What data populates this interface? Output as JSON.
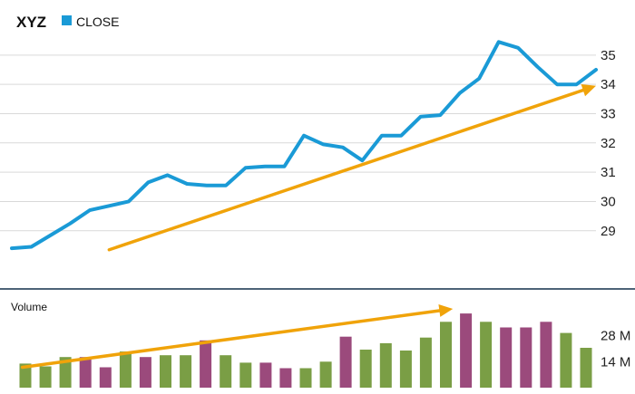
{
  "header": {
    "ticker": "XYZ",
    "legend_label": "CLOSE"
  },
  "colors": {
    "close_line": "#1a9ad6",
    "trend_arrow": "#f0a30a",
    "volume_up": "#7a9e45",
    "volume_down": "#9b4a7c",
    "grid": "#d9d9d9",
    "divider": "#4d6378"
  },
  "chart_data": [
    {
      "type": "line",
      "title": "XYZ",
      "series": [
        {
          "name": "CLOSE",
          "values": [
            28.4,
            28.45,
            28.85,
            29.25,
            29.7,
            29.85,
            30.0,
            30.65,
            30.9,
            30.6,
            30.55,
            30.55,
            31.15,
            31.2,
            31.2,
            32.25,
            31.95,
            31.85,
            31.4,
            32.25,
            32.25,
            32.9,
            32.95,
            33.7,
            34.2,
            35.45,
            35.25,
            34.6,
            34.0,
            34.0,
            34.5
          ]
        }
      ],
      "x_count": 31,
      "ylim": [
        27.6,
        35.8
      ],
      "yticks": [
        "29",
        "30",
        "31",
        "32",
        "33",
        "34",
        "35"
      ],
      "trend_arrow": {
        "from": [
          5,
          28.35
        ],
        "to": [
          30,
          33.95
        ]
      },
      "grid": true
    },
    {
      "type": "bar",
      "title": "Volume",
      "series": [
        {
          "values": [
            13,
            11.5,
            16.5,
            16.5,
            11,
            19.5,
            16.5,
            17.5,
            17.5,
            25.5,
            17.5,
            13.5,
            13.5,
            10.5,
            10.5,
            14,
            27.5,
            20.5,
            24,
            20,
            27,
            35.5,
            40,
            35.5,
            32.5,
            32.5,
            35.5,
            29.5,
            21.5
          ],
          "direction": [
            "up",
            "up",
            "up",
            "down",
            "down",
            "up",
            "down",
            "up",
            "up",
            "down",
            "up",
            "up",
            "down",
            "down",
            "up",
            "up",
            "down",
            "up",
            "up",
            "up",
            "up",
            "up",
            "down",
            "up",
            "down",
            "down",
            "down",
            "up",
            "up"
          ]
        }
      ],
      "unit": "M",
      "ylim": [
        0,
        42
      ],
      "yticks": [
        {
          "value": 14,
          "label": "14 M"
        },
        {
          "value": 28,
          "label": "28 M"
        }
      ],
      "trend_arrow": {
        "from": [
          -0.15,
          11
        ],
        "to": [
          21.35,
          42.5
        ]
      }
    }
  ]
}
